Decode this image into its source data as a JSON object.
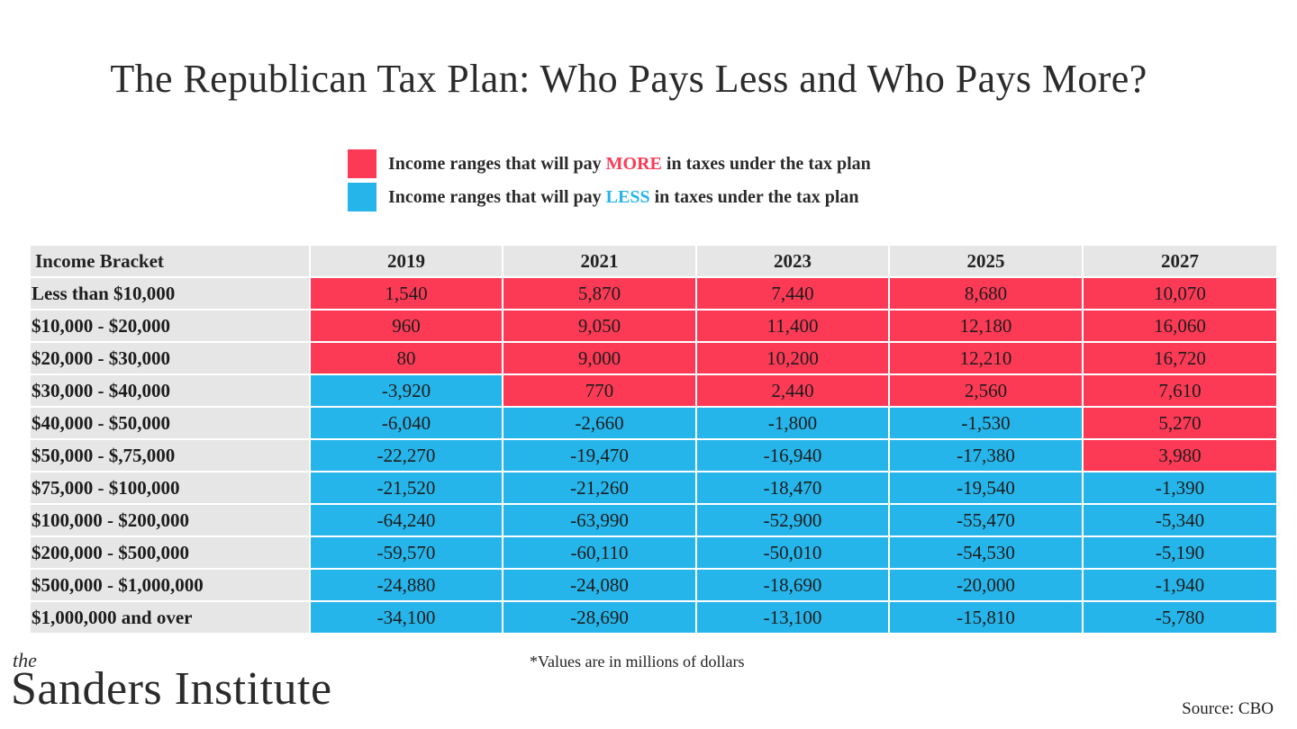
{
  "title": "The Republican Tax Plan: Who Pays Less and Who Pays More?",
  "legend": {
    "more": {
      "prefix": "Income ranges that will pay ",
      "highlight": "MORE",
      "suffix": " in taxes under the tax plan",
      "color": "#fd3a56"
    },
    "less": {
      "prefix": "Income ranges that will pay ",
      "highlight": "LESS",
      "suffix": " in taxes under the tax plan",
      "color": "#26b5ea"
    }
  },
  "colors": {
    "more": "#fd3a56",
    "less": "#26b5ea",
    "header": "#e6e6e6"
  },
  "chart_data": {
    "type": "table",
    "title": "The Republican Tax Plan: Who Pays Less and Who Pays More?",
    "row_header": "Income Bracket",
    "columns": [
      "2019",
      "2021",
      "2023",
      "2025",
      "2027"
    ],
    "rows": [
      {
        "bracket": "Less than $10,000",
        "values": [
          1540,
          5870,
          7440,
          8680,
          10070
        ]
      },
      {
        "bracket": "$10,000 - $20,000",
        "values": [
          960,
          9050,
          11400,
          12180,
          16060
        ]
      },
      {
        "bracket": "$20,000 - $30,000",
        "values": [
          80,
          9000,
          10200,
          12210,
          16720
        ]
      },
      {
        "bracket": "$30,000 - $40,000",
        "values": [
          -3920,
          770,
          2440,
          2560,
          7610
        ]
      },
      {
        "bracket": "$40,000 - $50,000",
        "values": [
          -6040,
          -2660,
          -1800,
          -1530,
          5270
        ]
      },
      {
        "bracket": "$50,000 - $,75,000",
        "values": [
          -22270,
          -19470,
          -16940,
          -17380,
          3980
        ]
      },
      {
        "bracket": "$75,000 - $100,000",
        "values": [
          -21520,
          -21260,
          -18470,
          -19540,
          -1390
        ]
      },
      {
        "bracket": "$100,000 - $200,000",
        "values": [
          -64240,
          -63990,
          -52900,
          -55470,
          -5340
        ]
      },
      {
        "bracket": "$200,000 - $500,000",
        "values": [
          -59570,
          -60110,
          -50010,
          -54530,
          -5190
        ]
      },
      {
        "bracket": "$500,000 - $1,000,000",
        "values": [
          -24880,
          -24080,
          -18690,
          -20000,
          -1940
        ]
      },
      {
        "bracket": "$1,000,000 and over",
        "values": [
          -34100,
          -28690,
          -13100,
          -15810,
          -5780
        ]
      }
    ],
    "units_note": "*Values are in millions of dollars"
  },
  "footer": {
    "logo_the": "the",
    "logo_name": "Sanders Institute",
    "source": "Source: CBO"
  }
}
